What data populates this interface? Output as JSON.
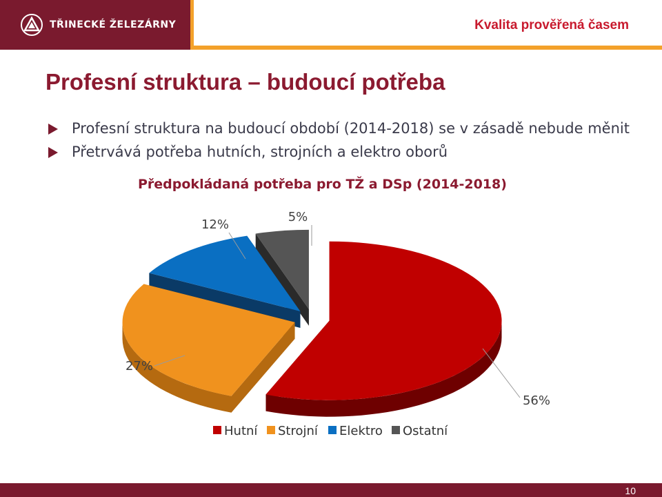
{
  "header": {
    "brand": "TŘINECKÉ ŽELEZÁRNY",
    "tagline": "Kvalita prověřená časem",
    "logo": "trinec-logo-icon"
  },
  "slide": {
    "title": "Profesní struktura – budoucí potřeba",
    "bullets": [
      "Profesní struktura na budoucí období (2014-2018) se v zásadě nebude měnit",
      "Přetrvává potřeba hutních, strojních a elektro oborů"
    ],
    "page_number": "10"
  },
  "colors": {
    "brand": "#7a1a2e",
    "accent": "#f3a12a",
    "title": "#8b1a30"
  },
  "chart_data": {
    "type": "pie",
    "three_d": true,
    "exploded": true,
    "title": "Předpokládaná potřeba pro TŽ a DSp (2014-2018)",
    "legend_position": "bottom",
    "categories": [
      "Hutní",
      "Strojní",
      "Elektro",
      "Ostatní"
    ],
    "values": [
      56,
      27,
      12,
      5
    ],
    "data_labels": [
      "56%",
      "27%",
      "12%",
      "5%"
    ],
    "colors": [
      "#c00000",
      "#f0921e",
      "#0a6fc2",
      "#555555"
    ],
    "side_colors": [
      "#6e0000",
      "#b56a10",
      "#0a3a66",
      "#2a2a2a"
    ]
  }
}
